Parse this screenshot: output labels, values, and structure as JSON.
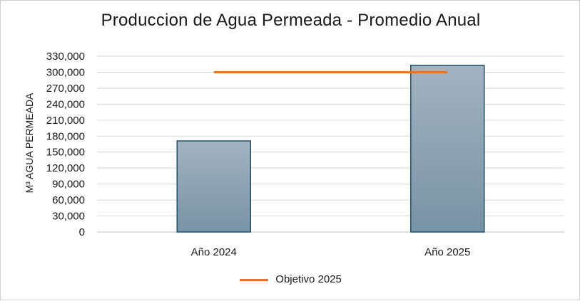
{
  "chart_data": {
    "type": "bar",
    "title": "Produccion de Agua Permeada - Promedio Anual",
    "ylabel": "M³ AGUA PERMEADA",
    "xlabel": "",
    "categories": [
      "Año 2024",
      "Año 2025"
    ],
    "series": [
      {
        "values": [
          171000,
          313000
        ],
        "color": "#7d96a8"
      }
    ],
    "target_line": {
      "name": "Objetivo 2025",
      "value": 300000,
      "color": "#e87427"
    },
    "ylim": [
      0,
      330000
    ],
    "yticks": [
      0,
      30000,
      60000,
      90000,
      120000,
      150000,
      180000,
      210000,
      240000,
      270000,
      300000,
      330000
    ],
    "ytick_labels": [
      "0",
      "30,000",
      "60,000",
      "90,000",
      "120,000",
      "150,000",
      "180,000",
      "210,000",
      "240,000",
      "270,000",
      "300,000",
      "330,000"
    ],
    "grid": true,
    "legend": "bottom"
  }
}
